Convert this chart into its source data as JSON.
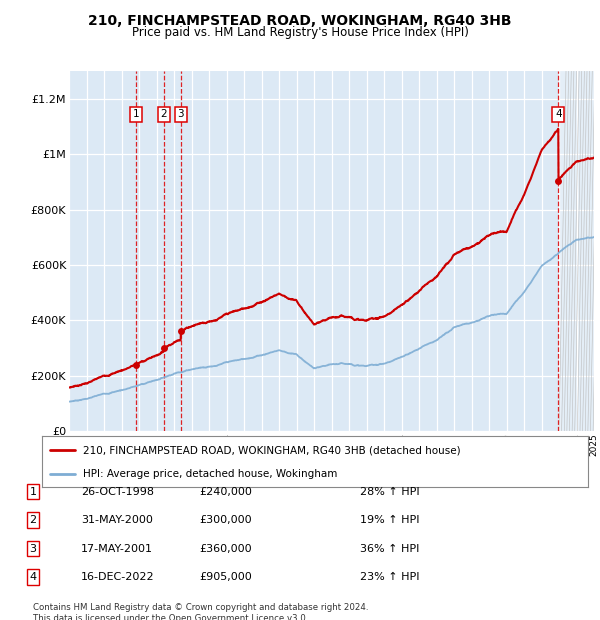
{
  "title": "210, FINCHAMPSTEAD ROAD, WOKINGHAM, RG40 3HB",
  "subtitle": "Price paid vs. HM Land Registry's House Price Index (HPI)",
  "property_label": "210, FINCHAMPSTEAD ROAD, WOKINGHAM, RG40 3HB (detached house)",
  "hpi_label": "HPI: Average price, detached house, Wokingham",
  "footnote": "Contains HM Land Registry data © Crown copyright and database right 2024.\nThis data is licensed under the Open Government Licence v3.0.",
  "sale_dates_decimal": [
    1998.82,
    2000.42,
    2001.38,
    2022.96
  ],
  "sale_prices": [
    240000,
    300000,
    360000,
    905000
  ],
  "sale_labels": [
    "1",
    "2",
    "3",
    "4"
  ],
  "sale_info": [
    [
      "1",
      "26-OCT-1998",
      "£240,000",
      "28% ↑ HPI"
    ],
    [
      "2",
      "31-MAY-2000",
      "£300,000",
      "19% ↑ HPI"
    ],
    [
      "3",
      "17-MAY-2001",
      "£360,000",
      "36% ↑ HPI"
    ],
    [
      "4",
      "16-DEC-2022",
      "£905,000",
      "23% ↑ HPI"
    ]
  ],
  "property_color": "#cc0000",
  "hpi_color": "#7eadd4",
  "vline_color": "#dd0000",
  "background_color": "#dce9f5",
  "ylim": [
    0,
    1300000
  ],
  "yticks": [
    0,
    200000,
    400000,
    600000,
    800000,
    1000000,
    1200000
  ],
  "ytick_labels": [
    "£0",
    "£200K",
    "£400K",
    "£600K",
    "£800K",
    "£1M",
    "£1.2M"
  ],
  "xstart_year": 1995,
  "xend_year": 2025,
  "hpi_knots_x": [
    1995,
    1996,
    1997,
    1998,
    1999,
    2000,
    2001,
    2002,
    2003,
    2004,
    2005,
    2006,
    2007,
    2008,
    2009,
    2010,
    2011,
    2012,
    2013,
    2014,
    2015,
    2016,
    2017,
    2018,
    2019,
    2020,
    2021,
    2022,
    2023,
    2024,
    2025
  ],
  "hpi_knots_y": [
    105000,
    118000,
    133000,
    150000,
    168000,
    188000,
    215000,
    235000,
    248000,
    262000,
    272000,
    290000,
    310000,
    295000,
    245000,
    252000,
    255000,
    248000,
    258000,
    278000,
    310000,
    345000,
    385000,
    405000,
    430000,
    440000,
    520000,
    620000,
    670000,
    720000,
    730000
  ]
}
